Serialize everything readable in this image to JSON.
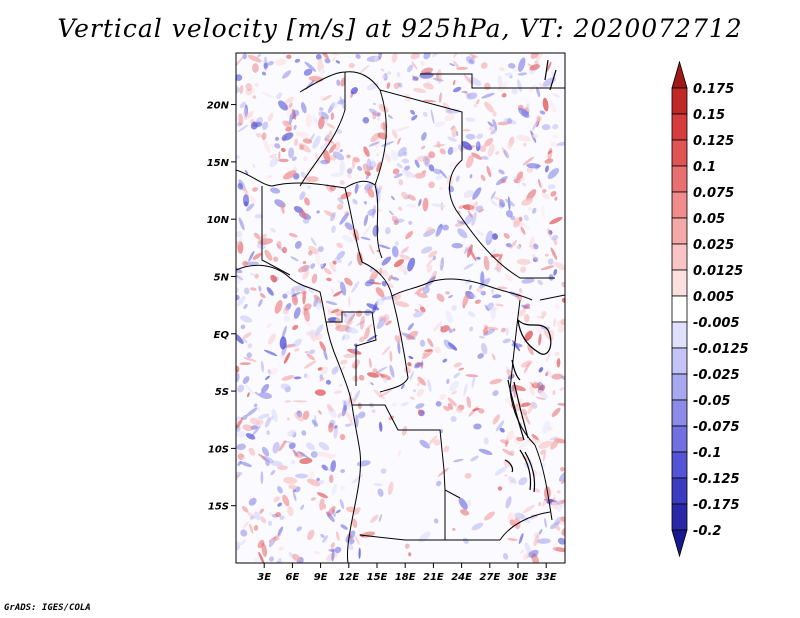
{
  "title": "Vertical velocity [m/s] at 925hPa, VT: 2020072712",
  "credit": "GrADS: IGES/COLA",
  "map": {
    "lon_range": [
      0,
      35
    ],
    "lat_range": [
      -20,
      24.5
    ],
    "lon_ticks": [
      {
        "value": 3,
        "label": "3E"
      },
      {
        "value": 6,
        "label": "6E"
      },
      {
        "value": 9,
        "label": "9E"
      },
      {
        "value": 12,
        "label": "12E"
      },
      {
        "value": 15,
        "label": "15E"
      },
      {
        "value": 18,
        "label": "18E"
      },
      {
        "value": 21,
        "label": "21E"
      },
      {
        "value": 24,
        "label": "24E"
      },
      {
        "value": 27,
        "label": "27E"
      },
      {
        "value": 30,
        "label": "30E"
      },
      {
        "value": 33,
        "label": "33E"
      }
    ],
    "lat_ticks": [
      {
        "value": 20,
        "label": "20N"
      },
      {
        "value": 15,
        "label": "15N"
      },
      {
        "value": 10,
        "label": "10N"
      },
      {
        "value": 5,
        "label": "5N"
      },
      {
        "value": 0,
        "label": "EQ"
      },
      {
        "value": -5,
        "label": "5S"
      },
      {
        "value": -10,
        "label": "10S"
      },
      {
        "value": -15,
        "label": "15S"
      }
    ]
  },
  "colorbar": {
    "levels": [
      "0.175",
      "0.15",
      "0.125",
      "0.1",
      "0.075",
      "0.05",
      "0.025",
      "0.0125",
      "0.005",
      "-0.005",
      "-0.0125",
      "-0.025",
      "-0.05",
      "-0.075",
      "-0.1",
      "-0.125",
      "-0.175",
      "-0.2"
    ],
    "colors": [
      "#a01818",
      "#c02828",
      "#d63c3c",
      "#e05454",
      "#e87070",
      "#f08c8c",
      "#f4a8a8",
      "#f8c4c4",
      "#fce0e0",
      "#ffffff",
      "#e0e0fc",
      "#c4c4f8",
      "#a8a8f0",
      "#8c8ce8",
      "#7070e0",
      "#5454d6",
      "#3c3cc0",
      "#2828a8",
      "#181890"
    ]
  }
}
